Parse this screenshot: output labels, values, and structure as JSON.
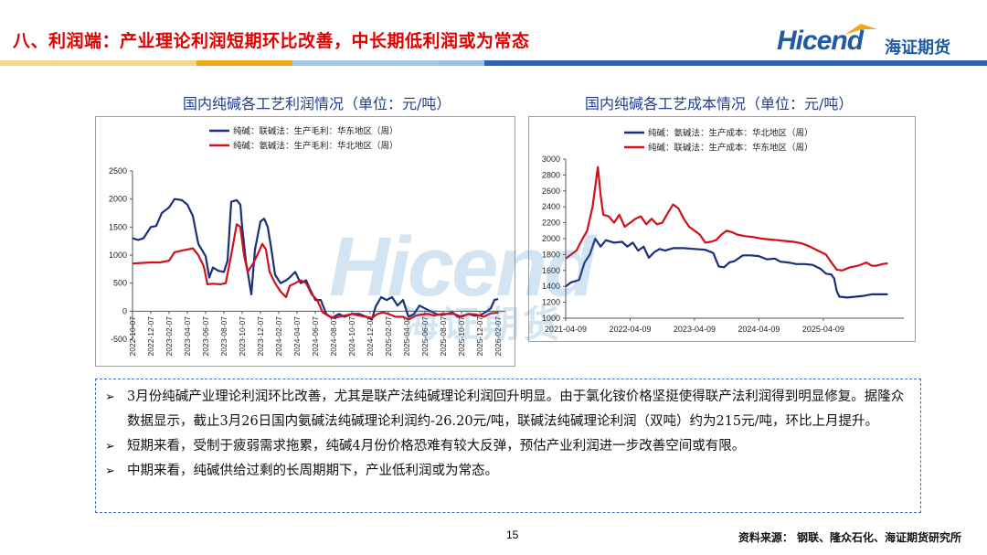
{
  "header": {
    "title": "八、利润端：产业理论利润短期环比改善，中长期低利润或为常态",
    "logo_text": "Hicend",
    "logo_cn": "海证期货"
  },
  "left_chart_title": "国内纯碱各工艺利润情况（单位：元/吨）",
  "right_chart_title": "国内纯碱各工艺成本情况（单位：元/吨）",
  "watermark": {
    "text": "Hicend",
    "cn": "海证期货"
  },
  "notes": [
    "3月份纯碱产业理论利润环比改善，尤其是联产法纯碱理论利润回升明显。由于氯化铵价格坚挺使得联产法利润得到明显修复。据隆众数据显示，截止3月26日国内氨碱法纯碱理论利润约-26.20元/吨，联碱法纯碱理论利润（双吨）约为215元/吨，环比上月提升。",
    "短期来看，受制于疲弱需求拖累，纯碱4月份价格恐难有较大反弹，预估产业利润进一步改善空间或有限。",
    "中期来看，纯碱供给过剩的长周期期下，产业低利润或为常态。"
  ],
  "footer": {
    "page": "15",
    "source": "资料来源： 钢联、隆众石化、海证期货研究所"
  },
  "colors": {
    "navy": "#1c2f7a",
    "red": "#d0101b",
    "title_red": "#e00000",
    "blue": "#1f5aa6"
  },
  "chart_data": [
    {
      "type": "line",
      "title": "国内纯碱各工艺利润情况（单位：元/吨）",
      "ylim": [
        -500,
        2500
      ],
      "yticks": [
        -500,
        0,
        500,
        1000,
        1500,
        2000,
        2500
      ],
      "x_tick_labels": [
        "2022-10-07",
        "2022-12-07",
        "2023-02-07",
        "2023-04-07",
        "2023-06-07",
        "2023-08-07",
        "2023-10-07",
        "2023-12-07",
        "2024-02-07",
        "2024-04-07",
        "2024-06-07",
        "2024-08-07",
        "2024-10-07",
        "2024-12-07",
        "2025-02-07",
        "2025-04-07",
        "2025-06-07",
        "2025-08-07",
        "2025-10-07",
        "2025-12-07",
        "2026-02-07"
      ],
      "legend_position": "top",
      "series": [
        {
          "name": "纯碱：联碱法：生产毛利：华东地区（周）",
          "color": "#1c2f7a",
          "points": [
            [
              0,
              1300
            ],
            [
              0.3,
              1270
            ],
            [
              0.6,
              1300
            ],
            [
              1,
              1500
            ],
            [
              1.3,
              1520
            ],
            [
              1.6,
              1750
            ],
            [
              2,
              1850
            ],
            [
              2.3,
              2000
            ],
            [
              2.7,
              1980
            ],
            [
              3,
              1900
            ],
            [
              3.3,
              1700
            ],
            [
              3.6,
              1200
            ],
            [
              4,
              980
            ],
            [
              4.2,
              600
            ],
            [
              4.4,
              780
            ],
            [
              4.7,
              720
            ],
            [
              5,
              700
            ],
            [
              5.2,
              900
            ],
            [
              5.4,
              1950
            ],
            [
              5.7,
              1980
            ],
            [
              5.9,
              1900
            ],
            [
              6,
              1500
            ],
            [
              6.2,
              900
            ],
            [
              6.5,
              300
            ],
            [
              6.7,
              1100
            ],
            [
              7,
              1600
            ],
            [
              7.2,
              1650
            ],
            [
              7.4,
              1500
            ],
            [
              7.6,
              1100
            ],
            [
              7.8,
              650
            ],
            [
              8.1,
              500
            ],
            [
              8.4,
              550
            ],
            [
              8.6,
              600
            ],
            [
              8.9,
              700
            ],
            [
              9.2,
              500
            ],
            [
              9.5,
              550
            ],
            [
              9.7,
              400
            ],
            [
              10,
              200
            ],
            [
              10.3,
              200
            ],
            [
              10.6,
              -50
            ],
            [
              10.9,
              -120
            ],
            [
              11.3,
              -50
            ],
            [
              11.6,
              -100
            ],
            [
              12,
              -50
            ],
            [
              12.4,
              -50
            ],
            [
              12.8,
              -100
            ],
            [
              13.1,
              -150
            ],
            [
              13.3,
              80
            ],
            [
              13.6,
              250
            ],
            [
              13.9,
              200
            ],
            [
              14.2,
              250
            ],
            [
              14.5,
              100
            ],
            [
              14.8,
              200
            ],
            [
              15.1,
              -100
            ],
            [
              15.4,
              -50
            ],
            [
              15.7,
              100
            ],
            [
              16,
              50
            ],
            [
              16.3,
              0
            ],
            [
              16.6,
              -50
            ],
            [
              16.9,
              -70
            ],
            [
              17.2,
              -50
            ],
            [
              17.5,
              -20
            ],
            [
              17.8,
              -100
            ],
            [
              18.1,
              -80
            ],
            [
              18.4,
              -50
            ],
            [
              18.7,
              -80
            ],
            [
              19,
              -80
            ],
            [
              19.3,
              -20
            ],
            [
              19.6,
              50
            ],
            [
              19.8,
              200
            ],
            [
              20,
              215
            ]
          ]
        },
        {
          "name": "纯碱：氨碱法：生产毛利：华北地区（周）",
          "color": "#d0101b",
          "points": [
            [
              0,
              850
            ],
            [
              0.5,
              860
            ],
            [
              1,
              870
            ],
            [
              1.5,
              870
            ],
            [
              2,
              900
            ],
            [
              2.3,
              1050
            ],
            [
              2.7,
              1080
            ],
            [
              3,
              1100
            ],
            [
              3.3,
              1120
            ],
            [
              3.6,
              1000
            ],
            [
              3.9,
              800
            ],
            [
              4.1,
              480
            ],
            [
              4.4,
              490
            ],
            [
              4.8,
              480
            ],
            [
              5.1,
              500
            ],
            [
              5.4,
              1000
            ],
            [
              5.7,
              1550
            ],
            [
              5.9,
              1500
            ],
            [
              6.1,
              1000
            ],
            [
              6.3,
              700
            ],
            [
              6.6,
              850
            ],
            [
              6.9,
              1050
            ],
            [
              7.1,
              1200
            ],
            [
              7.3,
              1100
            ],
            [
              7.5,
              700
            ],
            [
              7.8,
              500
            ],
            [
              8.1,
              350
            ],
            [
              8.4,
              250
            ],
            [
              8.6,
              450
            ],
            [
              8.9,
              500
            ],
            [
              9.2,
              550
            ],
            [
              9.5,
              500
            ],
            [
              9.8,
              300
            ],
            [
              10.1,
              200
            ],
            [
              10.4,
              -20
            ],
            [
              10.7,
              -80
            ],
            [
              11,
              -120
            ],
            [
              11.3,
              -100
            ],
            [
              11.6,
              -80
            ],
            [
              12,
              -50
            ],
            [
              12.4,
              -80
            ],
            [
              12.8,
              -100
            ],
            [
              13.1,
              -120
            ],
            [
              13.4,
              -50
            ],
            [
              13.7,
              -20
            ],
            [
              14,
              -50
            ],
            [
              14.4,
              -100
            ],
            [
              14.8,
              -100
            ],
            [
              15.1,
              -150
            ],
            [
              15.5,
              -80
            ],
            [
              15.8,
              -60
            ],
            [
              16.2,
              -50
            ],
            [
              16.5,
              -80
            ],
            [
              16.9,
              -50
            ],
            [
              17.2,
              -50
            ],
            [
              17.6,
              -50
            ],
            [
              18,
              -100
            ],
            [
              18.4,
              -50
            ],
            [
              18.8,
              -60
            ],
            [
              19.2,
              -100
            ],
            [
              19.6,
              -40
            ],
            [
              20,
              -26
            ]
          ]
        }
      ]
    },
    {
      "type": "line",
      "title": "国内纯碱各工艺成本情况（单位：元/吨）",
      "ylim": [
        1000,
        3000
      ],
      "yticks": [
        1000,
        1200,
        1400,
        1600,
        1800,
        2000,
        2200,
        2400,
        2600,
        2800,
        3000
      ],
      "x_tick_labels": [
        "2021-04-09",
        "2022-04-09",
        "2023-04-09",
        "2024-04-09",
        "2025-04-09"
      ],
      "legend_position": "top",
      "series": [
        {
          "name": "纯碱：氨碱法：生产成本：华北地区（周）",
          "color": "#1c2f7a",
          "points": [
            [
              0,
              1400
            ],
            [
              0.1,
              1450
            ],
            [
              0.25,
              1480
            ],
            [
              0.35,
              1700
            ],
            [
              0.45,
              1800
            ],
            [
              0.55,
              2000
            ],
            [
              0.65,
              1900
            ],
            [
              0.75,
              1980
            ],
            [
              0.9,
              1950
            ],
            [
              1.05,
              1960
            ],
            [
              1.15,
              1900
            ],
            [
              1.25,
              1950
            ],
            [
              1.35,
              1850
            ],
            [
              1.45,
              1900
            ],
            [
              1.55,
              1760
            ],
            [
              1.65,
              1830
            ],
            [
              1.75,
              1870
            ],
            [
              1.85,
              1850
            ],
            [
              2.0,
              1880
            ],
            [
              2.2,
              1880
            ],
            [
              2.4,
              1870
            ],
            [
              2.6,
              1860
            ],
            [
              2.75,
              1820
            ],
            [
              2.85,
              1650
            ],
            [
              2.95,
              1640
            ],
            [
              3.05,
              1700
            ],
            [
              3.15,
              1720
            ],
            [
              3.3,
              1790
            ],
            [
              3.45,
              1790
            ],
            [
              3.6,
              1780
            ],
            [
              3.75,
              1740
            ],
            [
              3.9,
              1750
            ],
            [
              4.0,
              1710
            ],
            [
              4.15,
              1700
            ],
            [
              4.3,
              1680
            ],
            [
              4.45,
              1680
            ],
            [
              4.6,
              1670
            ],
            [
              4.75,
              1620
            ],
            [
              4.85,
              1560
            ],
            [
              4.95,
              1550
            ],
            [
              5.0,
              1500
            ],
            [
              5.05,
              1340
            ],
            [
              5.1,
              1270
            ],
            [
              5.25,
              1260
            ],
            [
              5.4,
              1270
            ],
            [
              5.55,
              1280
            ],
            [
              5.7,
              1300
            ],
            [
              5.85,
              1300
            ],
            [
              6.0,
              1300
            ]
          ]
        },
        {
          "name": "纯碱：联碱法：生产成本：华东地区（周）",
          "color": "#d0101b",
          "points": [
            [
              0,
              1750
            ],
            [
              0.1,
              1800
            ],
            [
              0.2,
              1850
            ],
            [
              0.3,
              1980
            ],
            [
              0.4,
              2100
            ],
            [
              0.45,
              2250
            ],
            [
              0.5,
              2400
            ],
            [
              0.55,
              2650
            ],
            [
              0.6,
              2900
            ],
            [
              0.65,
              2550
            ],
            [
              0.7,
              2300
            ],
            [
              0.8,
              2280
            ],
            [
              0.9,
              2200
            ],
            [
              1.0,
              2300
            ],
            [
              1.1,
              2150
            ],
            [
              1.2,
              2200
            ],
            [
              1.3,
              2250
            ],
            [
              1.4,
              2280
            ],
            [
              1.5,
              2180
            ],
            [
              1.6,
              2250
            ],
            [
              1.7,
              2180
            ],
            [
              1.8,
              2200
            ],
            [
              1.9,
              2320
            ],
            [
              2.0,
              2430
            ],
            [
              2.1,
              2380
            ],
            [
              2.2,
              2250
            ],
            [
              2.3,
              2150
            ],
            [
              2.4,
              2100
            ],
            [
              2.5,
              2050
            ],
            [
              2.6,
              1950
            ],
            [
              2.7,
              1960
            ],
            [
              2.8,
              1980
            ],
            [
              2.9,
              2050
            ],
            [
              3.0,
              2100
            ],
            [
              3.1,
              2080
            ],
            [
              3.2,
              2050
            ],
            [
              3.35,
              2030
            ],
            [
              3.5,
              2020
            ],
            [
              3.65,
              2000
            ],
            [
              3.8,
              1990
            ],
            [
              3.95,
              1980
            ],
            [
              4.1,
              1970
            ],
            [
              4.25,
              1960
            ],
            [
              4.4,
              1940
            ],
            [
              4.55,
              1900
            ],
            [
              4.7,
              1850
            ],
            [
              4.85,
              1800
            ],
            [
              4.95,
              1700
            ],
            [
              5.05,
              1610
            ],
            [
              5.15,
              1600
            ],
            [
              5.3,
              1640
            ],
            [
              5.45,
              1660
            ],
            [
              5.6,
              1700
            ],
            [
              5.7,
              1660
            ],
            [
              5.8,
              1660
            ],
            [
              5.9,
              1680
            ],
            [
              6.0,
              1690
            ]
          ]
        }
      ]
    }
  ]
}
